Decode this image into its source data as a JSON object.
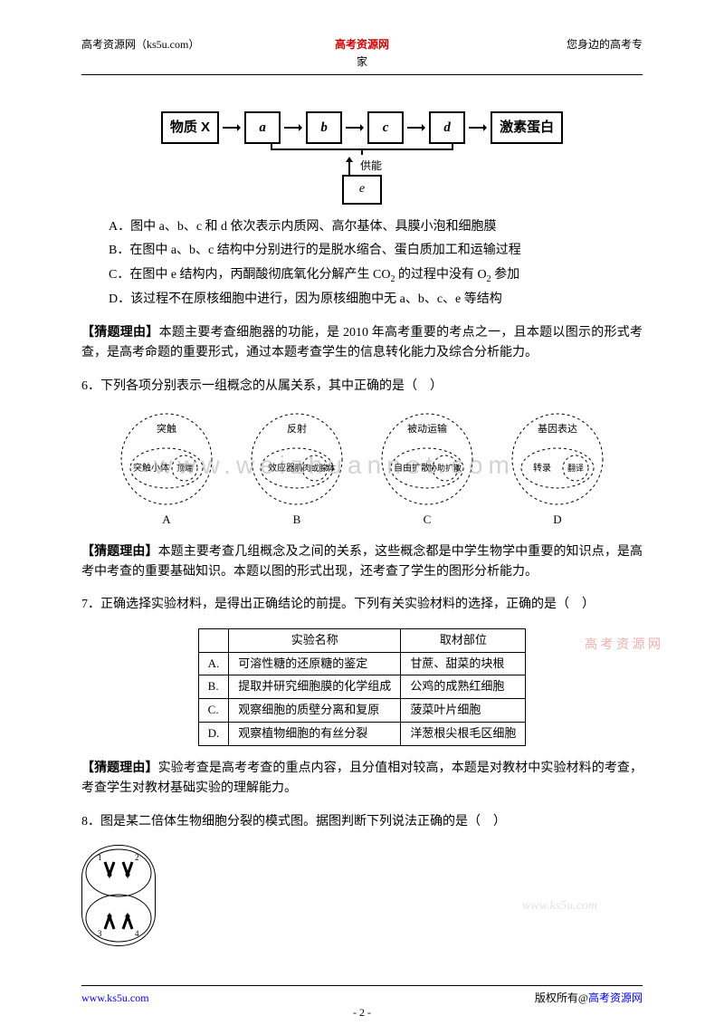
{
  "header": {
    "left": "高考资源网（ks5u.com）",
    "center_brand": "高考资源网",
    "center_sub": "家",
    "right": "您身边的高考专"
  },
  "q5": {
    "flow": {
      "start": "物质 X",
      "nodes": [
        "a",
        "b",
        "c",
        "d"
      ],
      "end": "激素蛋白",
      "supply_label": "供能",
      "e": "e"
    },
    "optA": "A．图中 a、b、c 和 d 依次表示内质网、高尔基体、具膜小泡和细胞膜",
    "optB": "B．在图中 a、b、c 结构中分别进行的是脱水缩合、蛋白质加工和运输过程",
    "optC_pre": "C．在图中 e 结构内，丙酮酸彻底氧化分解产生 CO",
    "optC_co2sub": "2",
    "optC_mid": " 的过程中没有 O",
    "optC_o2sub": "2",
    "optC_post": " 参加",
    "optD": "D．该过程不在原核细胞中进行，因为原核细胞中无 a、b、c、e 等结构",
    "analysis_label": "【猜题理由】",
    "analysis": "本题主要考查细胞器的功能，是 2010 年高考重要的考点之一，且本题以图示的形式考查，是高考命题的重要形式，通过本题考查学生的信息转化能力及综合分析能力。"
  },
  "q6": {
    "stem": "6．下列各项分别表示一组概念的从属关系，其中正确的是（　）",
    "diagrams": [
      {
        "outer": "突触",
        "inner_big": "突触小体",
        "inner_small": "顶端",
        "label": "A"
      },
      {
        "outer": "反射",
        "inner_big": "效应器",
        "inner_small": "肌肉或腺体",
        "label": "B"
      },
      {
        "outer": "被动运输",
        "inner_big": "自由扩散",
        "inner_small": "协助扩散",
        "label": "C"
      },
      {
        "outer": "基因表达",
        "inner_big": "转录",
        "inner_small": "翻译",
        "label": "D"
      }
    ],
    "watermark": "www.weizhuannet.com",
    "analysis_label": "【猜题理由】",
    "analysis": "本题主要考查几组概念及之间的关系，这些概念都是中学生物学中重要的知识点，是高考中考查的重要基础知识。本题以图的形式出现，还考查了学生的图形分析能力。"
  },
  "q7": {
    "stem": "7．正确选择实验材料，是得出正确结论的前提。下列有关实验材料的选择，正确的是（　）",
    "headers": [
      "",
      "实验名称",
      "取材部位"
    ],
    "rows": [
      [
        "A.",
        "可溶性糖的还原糖的鉴定",
        "甘蔗、甜菜的块根"
      ],
      [
        "B.",
        "提取并研究细胞膜的化学组成",
        "公鸡的成熟红细胞"
      ],
      [
        "C.",
        "观察细胞的质壁分离和复原",
        "菠菜叶片细胞"
      ],
      [
        "D.",
        "观察植物细胞的有丝分裂",
        "洋葱根尖根毛区细胞"
      ]
    ],
    "analysis_label": "【猜题理由】",
    "analysis": "实验考查是高考考查的重点内容，且分值相对较高，本题是对教材中实验材料的考查，考查学生对教材基础实验的理解能力。",
    "side_wm": "高 考 资 源 网"
  },
  "q8": {
    "stem": "8．图是某二倍体生物细胞分裂的模式图。据图判断下列说法正确的是（　）"
  },
  "footer": {
    "left": "www.ks5u.com",
    "right_pre": "版权所有@",
    "right_link": "高考资源网",
    "page": "- 2 -"
  },
  "colors": {
    "brand": "#cc0000",
    "link": "#0000ee"
  }
}
